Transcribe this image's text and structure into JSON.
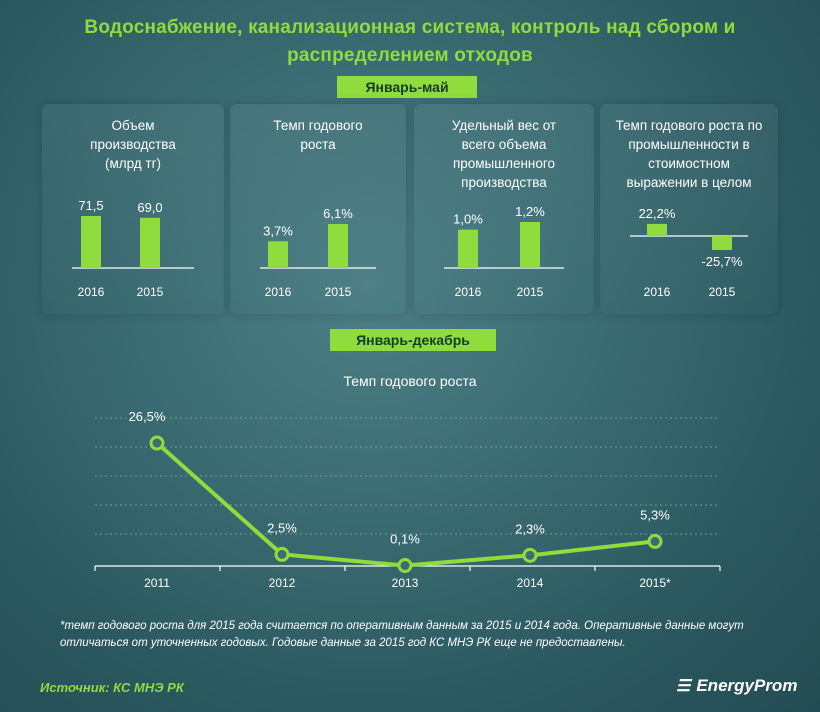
{
  "title": "Водоснабжение,  канализационная  система,  контроль над сбором и распределением  отходов",
  "section1_label": "Январь-май",
  "section2_label": "Январь-декабрь",
  "footnote": "*темп годового роста для 2015 года считается по оперативным данным за 2015 и 2014 года. Оперативные данные могут отличаться от уточненных годовых. Годовые данные за 2015 год КС МНЭ РК еще не предоставлены.",
  "source": "Источник: КС МНЭ РК",
  "logo_text": "EnergyProm",
  "colors": {
    "accent": "#8fdc3c",
    "background": "#2f5f66"
  },
  "chart_data": [
    {
      "type": "bar",
      "title": "Объем производства (млрд тг)",
      "categories": [
        "2016",
        "2015"
      ],
      "values": [
        71.5,
        69.0
      ],
      "value_labels": [
        "71,5",
        "69,0"
      ]
    },
    {
      "type": "bar",
      "title": "Темп годового роста",
      "categories": [
        "2016",
        "2015"
      ],
      "values": [
        3.7,
        6.1
      ],
      "value_labels": [
        "3,7%",
        "6,1%"
      ]
    },
    {
      "type": "bar",
      "title": "Удельный вес от всего объема промышленного производства",
      "categories": [
        "2016",
        "2015"
      ],
      "values": [
        1.0,
        1.2
      ],
      "value_labels": [
        "1,0%",
        "1,2%"
      ]
    },
    {
      "type": "bar",
      "title": "Темп годового роста по промышленности в стоимостном выражении в целом",
      "categories": [
        "2016",
        "2015"
      ],
      "values": [
        22.2,
        -25.7
      ],
      "value_labels": [
        "22,2%",
        "-25,7%"
      ]
    },
    {
      "type": "line",
      "title": "Темп годового роста",
      "categories": [
        "2011",
        "2012",
        "2013",
        "2014",
        "2015*"
      ],
      "values": [
        26.5,
        2.5,
        0.1,
        2.3,
        5.3
      ],
      "value_labels": [
        "26,5%",
        "2,5%",
        "0,1%",
        "2,3%",
        "5,3%"
      ],
      "grid": true
    }
  ]
}
